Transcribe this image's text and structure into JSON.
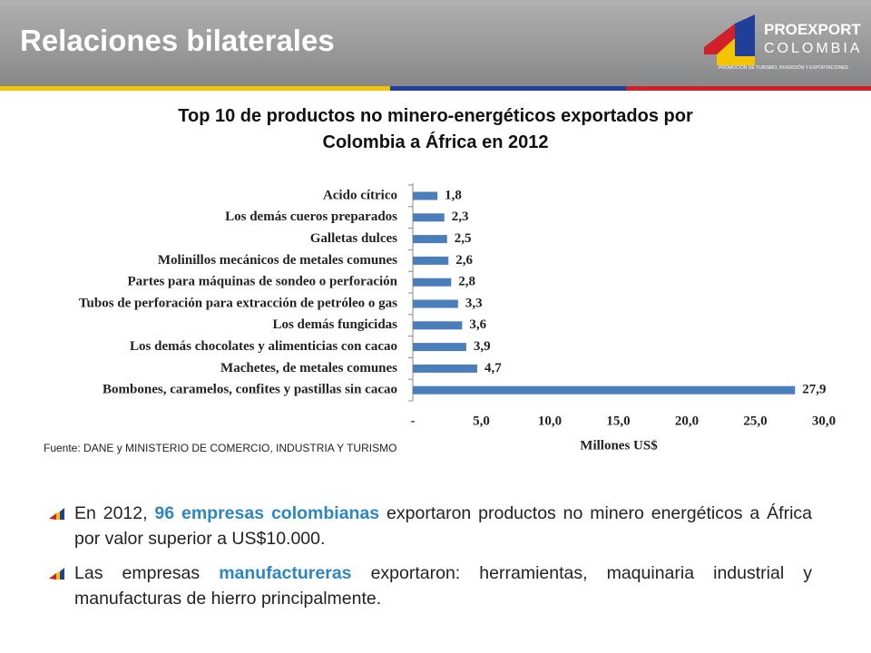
{
  "header": {
    "title": "Relaciones bilaterales",
    "logo": {
      "name": "PROEXPORT",
      "sub": "COLOMBIA",
      "tagline": "PROMOCIÓN DE TURISMO, INVERSIÓN Y EXPORTACIONES"
    }
  },
  "chart_data": {
    "type": "barh",
    "title": "Top 10 de productos no minero-energéticos exportados por Colombia a África en 2012",
    "categories": [
      "Acido cítrico",
      "Los demás cueros preparados",
      "Galletas dulces",
      "Molinillos mecánicos de metales comunes",
      "Partes para máquinas de sondeo o perforación",
      "Tubos de perforación para extracción de petróleo o gas",
      "Los demás fungicidas",
      "Los demás chocolates y alimenticias con cacao",
      "Machetes, de metales comunes",
      "Bombones, caramelos, confites y pastillas sin cacao"
    ],
    "values": [
      1.8,
      2.3,
      2.5,
      2.6,
      2.8,
      3.3,
      3.6,
      3.9,
      4.7,
      27.9
    ],
    "value_labels": [
      "1,8",
      "2,3",
      "2,5",
      "2,6",
      "2,8",
      "3,3",
      "3,6",
      "3,9",
      "4,7",
      "27,9"
    ],
    "color": "#4a7ebb",
    "xlim": [
      0,
      30
    ],
    "xticks": [
      {
        "value": 0,
        "label": "-"
      },
      {
        "value": 5,
        "label": "5,0"
      },
      {
        "value": 10,
        "label": "10,0"
      },
      {
        "value": 15,
        "label": "15,0"
      },
      {
        "value": 20,
        "label": "20,0"
      },
      {
        "value": 25,
        "label": "25,0"
      },
      {
        "value": 30,
        "label": "30,0"
      }
    ],
    "xlabel": "Millones US$",
    "source": "Fuente: DANE y MINISTERIO DE COMERCIO, INDUSTRIA Y TURISMO"
  },
  "bullets": [
    {
      "parts": [
        {
          "text": "En 2012, "
        },
        {
          "text": "96 empresas colombianas",
          "highlight": true
        },
        {
          "text": " exportaron productos no minero energéticos a África por valor superior a US$10.000."
        }
      ]
    },
    {
      "parts": [
        {
          "text": "Las empresas "
        },
        {
          "text": "manufactureras",
          "highlight": true
        },
        {
          "text": " exportaron: herramientas, maquinaria industrial y manufacturas de hierro principalmente."
        }
      ]
    }
  ]
}
